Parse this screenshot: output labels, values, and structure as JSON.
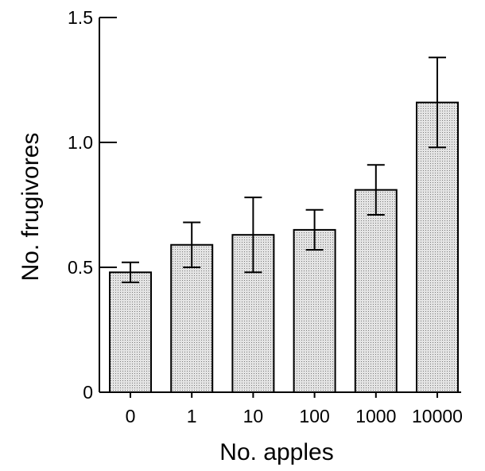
{
  "chart_data": {
    "type": "bar",
    "title": "",
    "xlabel": "No. apples",
    "ylabel": "No. frugivores",
    "categories": [
      "0",
      "1",
      "10",
      "100",
      "1000",
      "10000"
    ],
    "values": [
      0.48,
      0.59,
      0.63,
      0.65,
      0.81,
      1.16
    ],
    "error_upper": [
      0.52,
      0.68,
      0.78,
      0.73,
      0.91,
      1.34
    ],
    "error_lower": [
      0.44,
      0.5,
      0.48,
      0.57,
      0.71,
      0.98
    ],
    "ylim": [
      0,
      1.5
    ],
    "y_ticks": [
      0,
      0.5,
      1.0,
      1.5
    ],
    "y_tick_labels": [
      "0",
      "0.5",
      "1.0",
      "1.5"
    ],
    "grid": false,
    "bar_fill": "stippled light gray",
    "colors": {
      "bar_fill": "#e4e4e4",
      "bar_dots": "#7a7a7a",
      "axis": "#000000"
    }
  }
}
